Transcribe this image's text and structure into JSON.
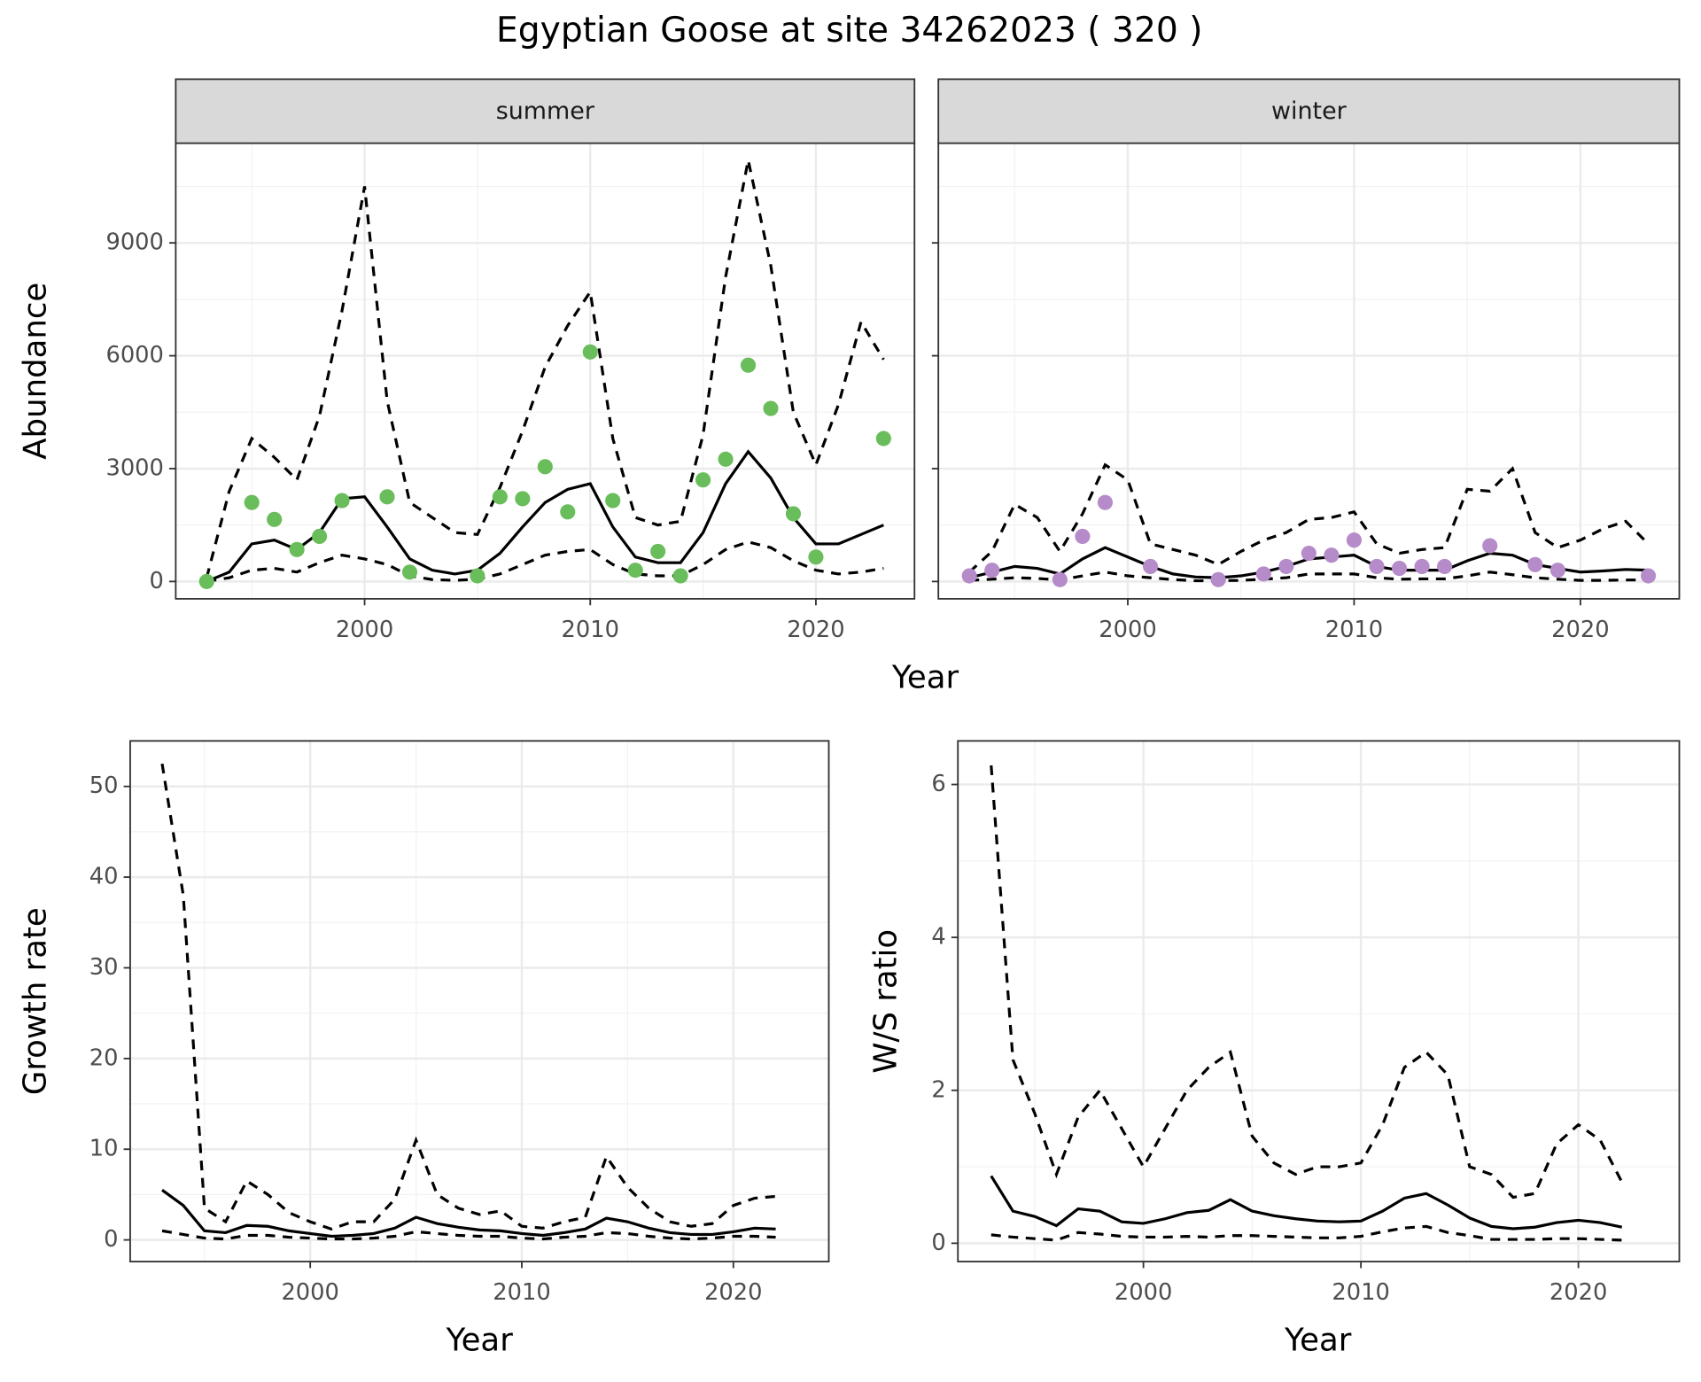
{
  "title": "Egyptian Goose at site 34262023 ( 320 )",
  "chart_data": [
    {
      "type": "line",
      "strip": "summer",
      "ylabel": "Abundance",
      "xlabel": "Year",
      "x": [
        1993,
        1994,
        1995,
        1996,
        1997,
        1998,
        1999,
        2000,
        2001,
        2002,
        2003,
        2004,
        2005,
        2006,
        2007,
        2008,
        2009,
        2010,
        2011,
        2012,
        2013,
        2014,
        2015,
        2016,
        2017,
        2018,
        2019,
        2020,
        2021,
        2022,
        2023
      ],
      "xlim": [
        1991.63,
        2024.37
      ],
      "ylim": [
        -460,
        11650
      ],
      "xticks": [
        2000,
        2010,
        2020
      ],
      "yticks": [
        0,
        3000,
        6000,
        9000
      ],
      "grid": true,
      "ytick_labels": true,
      "series": [
        {
          "style": "solid",
          "color": "#000000",
          "values": [
            0,
            250,
            1000,
            1100,
            850,
            1300,
            2200,
            2250,
            1450,
            600,
            300,
            200,
            300,
            750,
            1450,
            2100,
            2450,
            2600,
            1450,
            650,
            500,
            500,
            1300,
            2600,
            3450,
            2750,
            1700,
            1000,
            1000,
            1250,
            1500
          ]
        },
        {
          "style": "dashed",
          "color": "#000000",
          "values": [
            100,
            2400,
            3800,
            3300,
            2700,
            4400,
            7200,
            10500,
            4800,
            2100,
            1700,
            1300,
            1250,
            2500,
            4000,
            5700,
            6800,
            7700,
            3800,
            1700,
            1500,
            1600,
            3900,
            8100,
            11200,
            8400,
            4500,
            3100,
            4700,
            6900,
            5900
          ]
        },
        {
          "style": "dashed",
          "color": "#000000",
          "values": [
            0,
            100,
            300,
            350,
            250,
            500,
            700,
            600,
            450,
            150,
            50,
            30,
            60,
            200,
            450,
            700,
            800,
            850,
            450,
            200,
            150,
            150,
            450,
            850,
            1050,
            900,
            550,
            300,
            200,
            250,
            350
          ]
        },
        {
          "style": "points",
          "color": "#6abd5b",
          "values": [
            0,
            null,
            2100,
            1650,
            850,
            1200,
            2150,
            null,
            2250,
            250,
            null,
            null,
            150,
            2250,
            2200,
            3050,
            1850,
            6100,
            2150,
            300,
            800,
            150,
            2700,
            3250,
            5750,
            4600,
            1800,
            650,
            null,
            null,
            3800
          ]
        }
      ]
    },
    {
      "type": "line",
      "strip": "winter",
      "x": [
        1993,
        1994,
        1995,
        1996,
        1997,
        1998,
        1999,
        2000,
        2001,
        2002,
        2003,
        2004,
        2005,
        2006,
        2007,
        2008,
        2009,
        2010,
        2011,
        2012,
        2013,
        2014,
        2015,
        2016,
        2017,
        2018,
        2019,
        2020,
        2021,
        2022,
        2023
      ],
      "xlim": [
        1991.63,
        2024.37
      ],
      "ylim": [
        -460,
        11650
      ],
      "xticks": [
        2000,
        2010,
        2020
      ],
      "yticks": [
        0,
        3000,
        6000,
        9000
      ],
      "grid": true,
      "ytick_labels": false,
      "series": [
        {
          "style": "solid",
          "color": "#000000",
          "values": [
            100,
            250,
            400,
            350,
            200,
            600,
            900,
            650,
            400,
            200,
            120,
            100,
            150,
            250,
            400,
            600,
            650,
            700,
            400,
            300,
            300,
            300,
            550,
            750,
            700,
            450,
            350,
            250,
            280,
            320,
            300
          ]
        },
        {
          "style": "dashed",
          "color": "#000000",
          "values": [
            250,
            800,
            2050,
            1700,
            800,
            1800,
            3100,
            2700,
            1000,
            850,
            700,
            450,
            800,
            1100,
            1300,
            1650,
            1700,
            1850,
            1000,
            750,
            850,
            900,
            2450,
            2400,
            3000,
            1300,
            900,
            1100,
            1400,
            1600,
            1000
          ]
        },
        {
          "style": "dashed",
          "color": "#000000",
          "values": [
            30,
            60,
            100,
            80,
            40,
            150,
            250,
            150,
            100,
            50,
            20,
            20,
            30,
            60,
            100,
            200,
            200,
            200,
            100,
            60,
            70,
            70,
            150,
            250,
            180,
            100,
            60,
            30,
            30,
            40,
            40
          ]
        },
        {
          "style": "points",
          "color": "#b58bc9",
          "values": [
            150,
            300,
            null,
            null,
            50,
            1200,
            2100,
            null,
            400,
            null,
            null,
            50,
            null,
            200,
            400,
            750,
            700,
            1100,
            400,
            350,
            400,
            400,
            null,
            950,
            null,
            450,
            300,
            null,
            null,
            null,
            150
          ]
        }
      ]
    },
    {
      "type": "line",
      "ylabel": "Growth rate",
      "xlabel": "Year",
      "x": [
        1993,
        1994,
        1995,
        1996,
        1997,
        1998,
        1999,
        2000,
        2001,
        2002,
        2003,
        2004,
        2005,
        2006,
        2007,
        2008,
        2009,
        2010,
        2011,
        2012,
        2013,
        2014,
        2015,
        2016,
        2017,
        2018,
        2019,
        2020,
        2021,
        2022
      ],
      "xlim": [
        1991.49,
        2024.51
      ],
      "ylim": [
        -2.39,
        55.02
      ],
      "xticks": [
        2000,
        2010,
        2020
      ],
      "yticks": [
        0,
        10,
        20,
        30,
        40,
        50
      ],
      "grid": true,
      "ytick_labels": true,
      "series": [
        {
          "style": "solid",
          "color": "#000000",
          "values": [
            5.5,
            3.8,
            1.0,
            0.8,
            1.6,
            1.5,
            1.0,
            0.7,
            0.4,
            0.5,
            0.7,
            1.3,
            2.5,
            1.8,
            1.4,
            1.1,
            1.0,
            0.7,
            0.5,
            0.8,
            1.2,
            2.4,
            2.0,
            1.3,
            0.8,
            0.6,
            0.6,
            0.9,
            1.3,
            1.2
          ]
        },
        {
          "style": "dashed",
          "color": "#000000",
          "values": [
            52.5,
            38,
            3.5,
            2.0,
            6.5,
            5.0,
            3.0,
            2.0,
            1.2,
            2.0,
            2.0,
            4.5,
            11.0,
            5.0,
            3.5,
            2.8,
            3.2,
            1.5,
            1.3,
            2.0,
            2.5,
            9.2,
            5.8,
            3.5,
            2.0,
            1.5,
            1.8,
            3.8,
            4.6,
            4.8
          ]
        },
        {
          "style": "dashed",
          "color": "#000000",
          "values": [
            1.0,
            0.6,
            0.2,
            0.1,
            0.5,
            0.5,
            0.3,
            0.2,
            0.1,
            0.1,
            0.2,
            0.4,
            0.9,
            0.7,
            0.5,
            0.4,
            0.4,
            0.2,
            0.1,
            0.3,
            0.4,
            0.8,
            0.7,
            0.4,
            0.2,
            0.1,
            0.2,
            0.4,
            0.4,
            0.3
          ]
        }
      ]
    },
    {
      "type": "line",
      "ylabel": "W/S ratio",
      "xlabel": "Year",
      "x": [
        1993,
        1994,
        1995,
        1996,
        1997,
        1998,
        1999,
        2000,
        2001,
        2002,
        2003,
        2004,
        2005,
        2006,
        2007,
        2008,
        2009,
        2010,
        2011,
        2012,
        2013,
        2014,
        2015,
        2016,
        2017,
        2018,
        2019,
        2020,
        2021,
        2022
      ],
      "xlim": [
        1991.47,
        2024.64
      ],
      "ylim": [
        -0.24,
        6.57
      ],
      "xticks": [
        2000,
        2010,
        2020
      ],
      "yticks": [
        0,
        2,
        4,
        6
      ],
      "grid": true,
      "ytick_labels": true,
      "series": [
        {
          "style": "solid",
          "color": "#000000",
          "values": [
            0.88,
            0.42,
            0.35,
            0.23,
            0.45,
            0.42,
            0.28,
            0.26,
            0.32,
            0.4,
            0.43,
            0.57,
            0.42,
            0.36,
            0.32,
            0.29,
            0.28,
            0.29,
            0.42,
            0.59,
            0.65,
            0.5,
            0.33,
            0.22,
            0.19,
            0.21,
            0.27,
            0.3,
            0.27,
            0.21
          ]
        },
        {
          "style": "dashed",
          "color": "#000000",
          "values": [
            6.25,
            2.4,
            1.7,
            0.9,
            1.65,
            2.0,
            1.5,
            1.0,
            1.5,
            2.0,
            2.3,
            2.5,
            1.4,
            1.05,
            0.9,
            1.0,
            1.0,
            1.05,
            1.55,
            2.3,
            2.5,
            2.2,
            1.0,
            0.9,
            0.6,
            0.65,
            1.3,
            1.55,
            1.35,
            0.8
          ]
        },
        {
          "style": "dashed",
          "color": "#000000",
          "values": [
            0.11,
            0.08,
            0.06,
            0.04,
            0.14,
            0.12,
            0.09,
            0.08,
            0.08,
            0.09,
            0.08,
            0.1,
            0.1,
            0.09,
            0.08,
            0.07,
            0.07,
            0.09,
            0.15,
            0.2,
            0.22,
            0.14,
            0.1,
            0.05,
            0.05,
            0.05,
            0.06,
            0.06,
            0.05,
            0.04
          ]
        }
      ]
    }
  ]
}
